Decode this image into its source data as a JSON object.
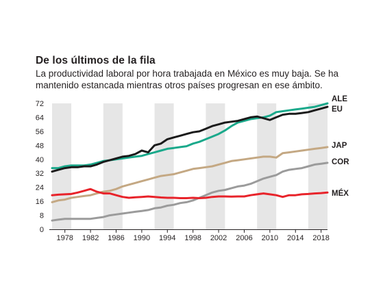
{
  "title": "De los últimos de la fila",
  "subtitle": "La productividad laboral por hora trabajada en México es muy baja. Se ha mantenido estancada mientras otros países progresan en ese ámbito.",
  "chart_data": {
    "type": "line",
    "title": "De los últimos de la fila",
    "subtitle": "La productividad laboral por hora trabajada en México es muy baja. Se ha mantenido estancada mientras otros países progresan en ese ámbito.",
    "xlabel": "",
    "ylabel": "",
    "xlim": [
      1976,
      2019
    ],
    "ylim": [
      0,
      72
    ],
    "x_ticks": [
      "1978",
      "1982",
      "1986",
      "1990",
      "1994",
      "1998",
      "2002",
      "2006",
      "2010",
      "2014",
      "2018"
    ],
    "y_ticks": [
      "0",
      "8",
      "16",
      "24",
      "32",
      "40",
      "48",
      "56",
      "64",
      "72"
    ],
    "shaded_bands": [
      [
        1976,
        1979
      ],
      [
        1984,
        1987
      ],
      [
        1992,
        1995
      ],
      [
        2000,
        2003
      ],
      [
        2008,
        2011
      ],
      [
        2016,
        2019
      ]
    ],
    "colors": {
      "ALE": "#1aa98b",
      "EU": "#1a1a1a",
      "JAP": "#c4a883",
      "COR": "#9b9b9b",
      "MÉX": "#e8232a",
      "band": "#e6e6e6"
    },
    "series": [
      {
        "name": "ALE",
        "label": "ALE",
        "color": "#1aa98b",
        "x": [
          1976,
          1977,
          1978,
          1979,
          1980,
          1981,
          1982,
          1983,
          1984,
          1985,
          1986,
          1987,
          1988,
          1989,
          1990,
          1991,
          1992,
          1993,
          1994,
          1995,
          1996,
          1997,
          1998,
          1999,
          2000,
          2001,
          2002,
          2003,
          2004,
          2005,
          2006,
          2007,
          2008,
          2009,
          2010,
          2011,
          2012,
          2013,
          2014,
          2015,
          2016,
          2017,
          2018,
          2019
        ],
        "y": [
          35,
          35,
          36,
          36.5,
          36.5,
          36.5,
          37,
          38,
          39,
          39.5,
          40,
          40.5,
          41,
          41.5,
          42,
          43,
          44,
          45,
          46,
          46.5,
          47,
          47.5,
          49,
          50,
          51.5,
          53,
          54.5,
          56.5,
          59,
          61,
          62,
          63,
          63.5,
          64,
          65,
          67,
          67.5,
          68,
          68.5,
          69,
          69.5,
          70,
          71,
          72
        ]
      },
      {
        "name": "EU",
        "label": "EU",
        "color": "#1a1a1a",
        "x": [
          1976,
          1977,
          1978,
          1979,
          1980,
          1981,
          1982,
          1983,
          1984,
          1985,
          1986,
          1987,
          1988,
          1989,
          1990,
          1991,
          1992,
          1993,
          1994,
          1995,
          1996,
          1997,
          1998,
          1999,
          2000,
          2001,
          2002,
          2003,
          2004,
          2005,
          2006,
          2007,
          2008,
          2009,
          2010,
          2011,
          2012,
          2013,
          2014,
          2015,
          2016,
          2017,
          2018,
          2019
        ],
        "y": [
          33,
          34,
          35,
          35.5,
          35.5,
          36,
          36,
          37,
          38.5,
          39.5,
          40.5,
          41.5,
          42,
          43,
          45,
          44,
          48,
          49,
          51.5,
          52.5,
          53.5,
          54.5,
          55.5,
          56,
          57.5,
          59,
          60,
          61,
          61.5,
          62,
          63,
          64,
          64.5,
          63.5,
          62.5,
          64,
          65.5,
          66,
          66,
          66.5,
          67,
          68,
          69,
          70
        ]
      },
      {
        "name": "JAP",
        "label": "JAP",
        "color": "#c4a883",
        "x": [
          1976,
          1977,
          1978,
          1979,
          1980,
          1981,
          1982,
          1983,
          1984,
          1985,
          1986,
          1987,
          1988,
          1989,
          1990,
          1991,
          1992,
          1993,
          1994,
          1995,
          1996,
          1997,
          1998,
          1999,
          2000,
          2001,
          2002,
          2003,
          2004,
          2005,
          2006,
          2007,
          2008,
          2009,
          2010,
          2011,
          2012,
          2013,
          2014,
          2015,
          2016,
          2017,
          2018,
          2019
        ],
        "y": [
          15.5,
          16.5,
          17,
          18,
          18.5,
          19,
          19.5,
          20.5,
          21.5,
          22,
          23,
          24.5,
          25.5,
          26.5,
          27.5,
          28.5,
          29.5,
          30.5,
          31,
          31.5,
          32.5,
          33.5,
          34.5,
          35,
          35.5,
          36,
          37,
          38,
          39,
          39.5,
          40,
          40.5,
          41,
          41.5,
          41.5,
          41,
          43.5,
          44,
          44.5,
          45,
          45.5,
          46,
          46.5,
          47
        ]
      },
      {
        "name": "COR",
        "label": "COR",
        "color": "#9b9b9b",
        "x": [
          1976,
          1977,
          1978,
          1979,
          1980,
          1981,
          1982,
          1983,
          1984,
          1985,
          1986,
          1987,
          1988,
          1989,
          1990,
          1991,
          1992,
          1993,
          1994,
          1995,
          1996,
          1997,
          1998,
          1999,
          2000,
          2001,
          2002,
          2003,
          2004,
          2005,
          2006,
          2007,
          2008,
          2009,
          2010,
          2011,
          2012,
          2013,
          2014,
          2015,
          2016,
          2017,
          2018,
          2019
        ],
        "y": [
          5,
          5.5,
          6,
          6,
          6,
          6,
          6,
          6.5,
          7,
          8,
          8.5,
          9,
          9.5,
          10,
          10.5,
          11,
          12,
          12.5,
          13.5,
          14,
          15,
          15.5,
          16.5,
          18,
          19.5,
          21,
          22,
          22.5,
          23.5,
          24.5,
          25,
          26,
          27.5,
          29,
          30,
          31,
          33,
          34,
          34.5,
          35,
          36,
          37,
          37.5,
          38
        ]
      },
      {
        "name": "MÉX",
        "label": "MÉX",
        "color": "#e8232a",
        "x": [
          1976,
          1977,
          1978,
          1979,
          1980,
          1981,
          1982,
          1983,
          1984,
          1985,
          1986,
          1987,
          1988,
          1989,
          1990,
          1991,
          1992,
          1993,
          1994,
          1995,
          1996,
          1997,
          1998,
          1999,
          2000,
          2001,
          2002,
          2003,
          2004,
          2005,
          2006,
          2007,
          2008,
          2009,
          2010,
          2011,
          2012,
          2013,
          2014,
          2015,
          2016,
          2017,
          2018,
          2019
        ],
        "y": [
          19.5,
          19.8,
          20,
          20.2,
          21,
          22,
          23,
          21.5,
          20.5,
          20.5,
          19.5,
          18.5,
          18,
          18.3,
          18.5,
          18.8,
          18.5,
          18.2,
          18,
          18,
          17.8,
          17.8,
          18,
          17.8,
          18,
          18.5,
          18.8,
          18.8,
          18.7,
          18.8,
          18.8,
          19.5,
          20,
          20.5,
          20,
          19.5,
          18.5,
          19.5,
          19.5,
          20,
          20.2,
          20.5,
          20.7,
          21
        ]
      }
    ]
  }
}
